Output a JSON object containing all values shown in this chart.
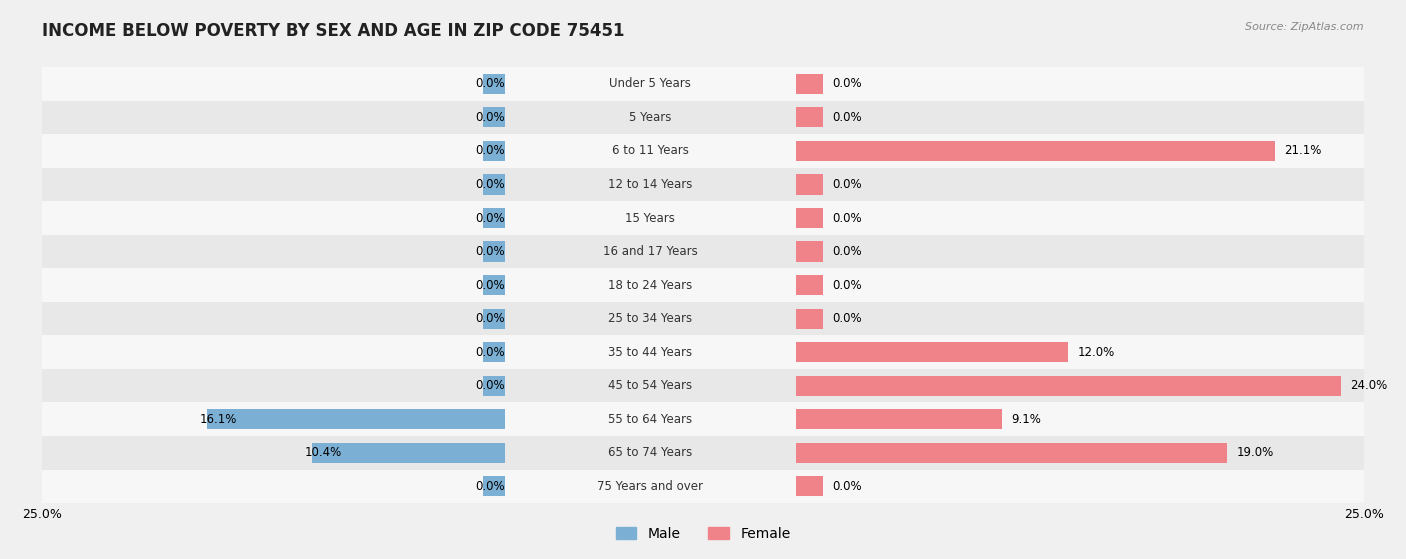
{
  "title": "INCOME BELOW POVERTY BY SEX AND AGE IN ZIP CODE 75451",
  "source": "Source: ZipAtlas.com",
  "categories": [
    "Under 5 Years",
    "5 Years",
    "6 to 11 Years",
    "12 to 14 Years",
    "15 Years",
    "16 and 17 Years",
    "18 to 24 Years",
    "25 to 34 Years",
    "35 to 44 Years",
    "45 to 54 Years",
    "55 to 64 Years",
    "65 to 74 Years",
    "75 Years and over"
  ],
  "male_values": [
    0.0,
    0.0,
    0.0,
    0.0,
    0.0,
    0.0,
    0.0,
    0.0,
    0.0,
    0.0,
    16.1,
    10.4,
    0.0
  ],
  "female_values": [
    0.0,
    0.0,
    21.1,
    0.0,
    0.0,
    0.0,
    0.0,
    0.0,
    12.0,
    24.0,
    9.1,
    19.0,
    0.0
  ],
  "male_color": "#7bafd4",
  "female_color": "#f0828a",
  "axis_limit": 25.0,
  "background_color": "#f0f0f0",
  "row_bg_light": "#f7f7f7",
  "row_bg_dark": "#e8e8e8",
  "title_fontsize": 12,
  "label_fontsize": 8.5,
  "tick_fontsize": 9,
  "legend_fontsize": 10,
  "stub_value": 1.2
}
